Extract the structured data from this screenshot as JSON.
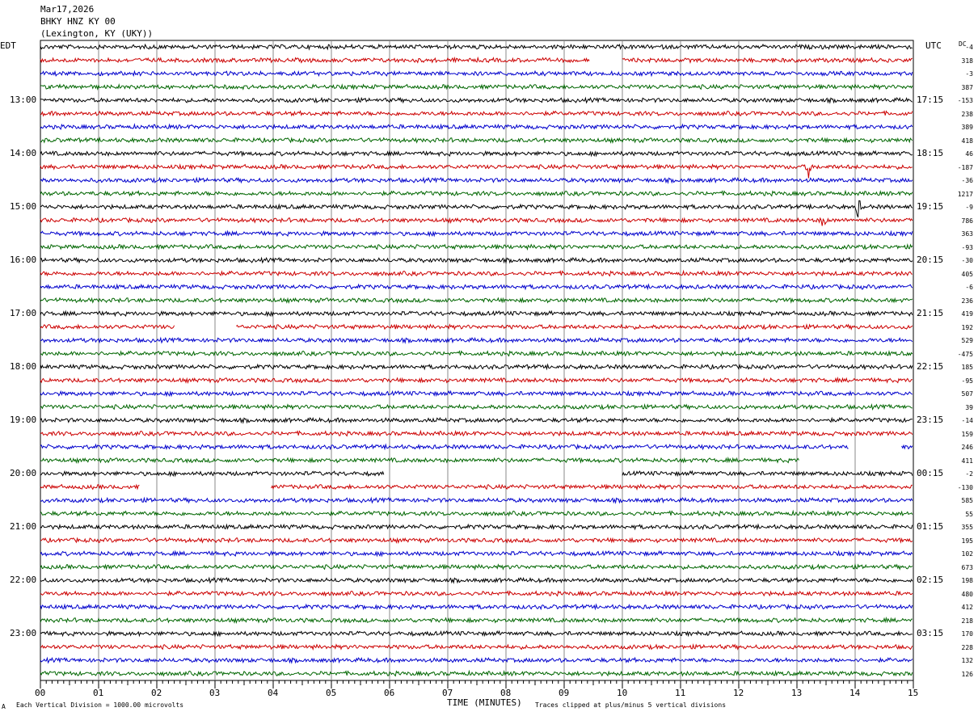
{
  "header": {
    "date": "Mar17,2026",
    "station": "BHKY HNZ KY 00",
    "location": "(Lexington, KY (UKY))"
  },
  "left_tz": "EDT",
  "right_tz": "UTC",
  "dc_label": "DC",
  "footer": {
    "vertical_division": "Each Vertical Division = 1000.00 microvolts",
    "clip_note": "Traces clipped at plus/minus 5 vertical divisions",
    "corner_mark": "A"
  },
  "colors": {
    "cycle": [
      "#000000",
      "#cc0000",
      "#0000cc",
      "#006600"
    ],
    "grid": "#888888"
  },
  "chart_data": {
    "type": "line",
    "xlabel": "TIME (MINUTES)",
    "x_ticks": [
      "00",
      "01",
      "02",
      "03",
      "04",
      "05",
      "06",
      "07",
      "08",
      "09",
      "10",
      "11",
      "12",
      "13",
      "14",
      "15"
    ],
    "xlim": [
      0,
      15
    ],
    "left_hour_labels": [
      "13:00",
      "14:00",
      "15:00",
      "16:00",
      "17:00",
      "18:00",
      "19:00",
      "20:00",
      "21:00",
      "22:00",
      "23:00"
    ],
    "right_hour_labels": [
      "17:15",
      "18:15",
      "19:15",
      "20:15",
      "21:15",
      "22:15",
      "23:15",
      "00:15",
      "01:15",
      "02:15",
      "03:15"
    ],
    "hour_label_rows": [
      4,
      8,
      12,
      16,
      20,
      24,
      28,
      32,
      36,
      40,
      44
    ],
    "dc_offsets": [
      "-4",
      "318",
      "-3",
      "387",
      "-153",
      "238",
      "389",
      "418",
      "46",
      "-187",
      "-36",
      "1217",
      "-9",
      "786",
      "363",
      "-93",
      "-30",
      "405",
      "-6",
      "236",
      "419",
      "192",
      "529",
      "-475",
      "185",
      "-95",
      "507",
      "39",
      "-14",
      "159",
      "246",
      "411",
      "-2",
      "-130",
      "585",
      "55",
      "355",
      "195",
      "102",
      "673",
      "198",
      "480",
      "412",
      "218",
      "170",
      "228",
      "132",
      "126"
    ],
    "gaps": [
      {
        "row": 1,
        "from": 9.45,
        "to": 10.0
      },
      {
        "row": 21,
        "from": 2.3,
        "to": 3.35
      },
      {
        "row": 30,
        "from": 13.9,
        "to": 14.8
      },
      {
        "row": 31,
        "from": 13.05,
        "to": 15.0
      },
      {
        "row": 32,
        "from": 5.9,
        "to": 10.0
      },
      {
        "row": 33,
        "from": 1.7,
        "to": 3.95
      }
    ],
    "events": [
      {
        "row": 13,
        "minute": 13.45
      },
      {
        "row": 12,
        "minute": 14.05
      },
      {
        "row": 9,
        "minute": 13.2
      }
    ]
  }
}
